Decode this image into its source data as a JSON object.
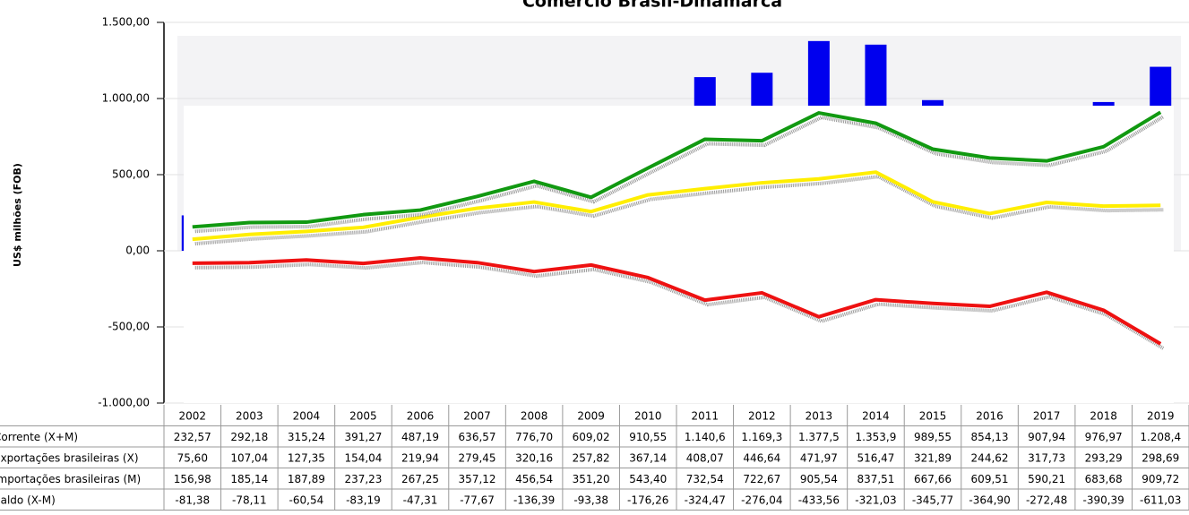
{
  "chart_data": {
    "type": "bar-line",
    "title": "Comércio Brasil-Dinamarca",
    "y_label": "US$ milhões (FOB)",
    "categories": [
      "2002",
      "2003",
      "2004",
      "2005",
      "2006",
      "2007",
      "2008",
      "2009",
      "2010",
      "2011",
      "2012",
      "2013",
      "2014",
      "2015",
      "2016",
      "2017",
      "2018",
      "2019"
    ],
    "ylim": [
      -1000,
      1500
    ],
    "yticks": [
      {
        "value": 1500,
        "label": "1.500,00"
      },
      {
        "value": 1000,
        "label": "1.000,00"
      },
      {
        "value": 500,
        "label": "500,00"
      },
      {
        "value": 0,
        "label": "0,00"
      },
      {
        "value": -500,
        "label": "-500,00"
      },
      {
        "value": -1000,
        "label": "-1.000,00"
      }
    ],
    "series": [
      {
        "name": "Corrente (X+M)",
        "kind": "bar",
        "color": "#0000ee",
        "values": [
          232.57,
          292.18,
          315.24,
          391.27,
          487.19,
          636.57,
          776.7,
          609.02,
          910.55,
          1140.6,
          1169.3,
          1377.5,
          1353.9,
          989.55,
          854.13,
          907.94,
          976.97,
          1208.4
        ],
        "value_labels": [
          "232,57",
          "292,18",
          "315,24",
          "391,27",
          "487,19",
          "636,57",
          "776,70",
          "609,02",
          "910,55",
          "1.140,6",
          "1.169,3",
          "1.377,5",
          "1.353,9",
          "989,55",
          "854,13",
          "907,94",
          "976,97",
          "1.208,4"
        ]
      },
      {
        "name": "Exportações brasileiras (X)",
        "kind": "line",
        "color": "#ffee00",
        "values": [
          75.6,
          107.04,
          127.35,
          154.04,
          219.94,
          279.45,
          320.16,
          257.82,
          367.14,
          408.07,
          446.64,
          471.97,
          516.47,
          321.89,
          244.62,
          317.73,
          293.29,
          298.69
        ],
        "value_labels": [
          "75,60",
          "107,04",
          "127,35",
          "154,04",
          "219,94",
          "279,45",
          "320,16",
          "257,82",
          "367,14",
          "408,07",
          "446,64",
          "471,97",
          "516,47",
          "321,89",
          "244,62",
          "317,73",
          "293,29",
          "298,69"
        ]
      },
      {
        "name": "Importações brasileiras (M)",
        "kind": "line",
        "color": "#119911",
        "values": [
          156.98,
          185.14,
          187.89,
          237.23,
          267.25,
          357.12,
          456.54,
          351.2,
          543.4,
          732.54,
          722.67,
          905.54,
          837.51,
          667.66,
          609.51,
          590.21,
          683.68,
          909.72
        ],
        "value_labels": [
          "156,98",
          "185,14",
          "187,89",
          "237,23",
          "267,25",
          "357,12",
          "456,54",
          "351,20",
          "543,40",
          "732,54",
          "722,67",
          "905,54",
          "837,51",
          "667,66",
          "609,51",
          "590,21",
          "683,68",
          "909,72"
        ]
      },
      {
        "name": "Saldo (X-M)",
        "kind": "line",
        "color": "#ee1111",
        "values": [
          -81.38,
          -78.11,
          -60.54,
          -83.19,
          -47.31,
          -77.67,
          -136.39,
          -93.38,
          -176.26,
          -324.47,
          -276.04,
          -433.56,
          -321.03,
          -345.77,
          -364.9,
          -272.48,
          -390.39,
          -611.03
        ],
        "value_labels": [
          "-81,38",
          "-78,11",
          "-60,54",
          "-83,19",
          "-47,31",
          "-77,67",
          "-136,39",
          "-93,38",
          "-176,26",
          "-324,47",
          "-276,04",
          "-433,56",
          "-321,03",
          "-345,77",
          "-364,90",
          "-272,48",
          "-390,39",
          "-611,03"
        ]
      }
    ]
  }
}
